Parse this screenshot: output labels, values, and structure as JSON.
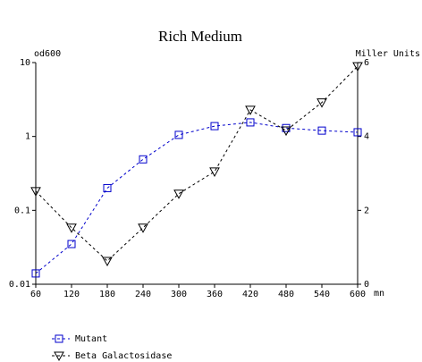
{
  "chart_data": {
    "type": "line",
    "title": "Rich Medium",
    "ylabel": "od600",
    "y2label": "Miller Units",
    "xlabel": "mn",
    "x": [
      60,
      120,
      180,
      240,
      300,
      360,
      420,
      480,
      540,
      600
    ],
    "xlim": [
      60,
      600
    ],
    "xticks": [
      60,
      120,
      180,
      240,
      300,
      360,
      420,
      480,
      540,
      600
    ],
    "ylim": [
      0.01,
      10
    ],
    "yticks": [
      0.01,
      0.1,
      1,
      10
    ],
    "ylog": true,
    "y2lim": [
      0,
      6
    ],
    "y2ticks": [
      0,
      2,
      4,
      6
    ],
    "series": [
      {
        "name": "Mutant",
        "color": "#0000cc",
        "marker": "square",
        "values": [
          0.014,
          0.035,
          0.2,
          0.49,
          1.05,
          1.38,
          1.55,
          1.3,
          1.2,
          1.14
        ]
      },
      {
        "name": "Beta Galactosidase",
        "color": "#000000",
        "marker": "triangle-down",
        "axis": "y2",
        "values": [
          2.52,
          1.53,
          0.63,
          1.53,
          2.45,
          3.05,
          4.72,
          4.16,
          4.92,
          5.9
        ]
      }
    ]
  }
}
